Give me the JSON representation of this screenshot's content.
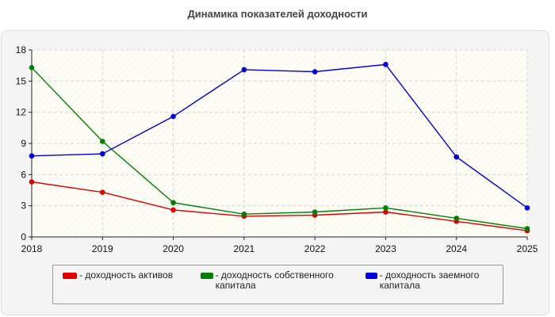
{
  "chart_data": {
    "type": "line",
    "title": "Динамика показателей доходности",
    "x": [
      "2018",
      "2019",
      "2020",
      "2021",
      "2022",
      "2023",
      "2024",
      "2025"
    ],
    "ylim": [
      0,
      18
    ],
    "yticks": [
      0,
      3,
      6,
      9,
      12,
      15,
      18
    ],
    "grid": true,
    "legend_position": "bottom",
    "series": [
      {
        "name": "- доходность активов",
        "color": "#e00000",
        "values": [
          5.3,
          4.3,
          2.6,
          2.0,
          2.1,
          2.4,
          1.5,
          0.6
        ]
      },
      {
        "name": "- доходность собственного капитала",
        "color": "#008000",
        "values": [
          16.3,
          9.2,
          3.3,
          2.2,
          2.4,
          2.8,
          1.8,
          0.8
        ]
      },
      {
        "name": "- доходность заемного капитала",
        "color": "#0000dd",
        "values": [
          7.8,
          8.0,
          11.6,
          16.1,
          15.9,
          16.6,
          7.7,
          2.8
        ]
      }
    ]
  }
}
